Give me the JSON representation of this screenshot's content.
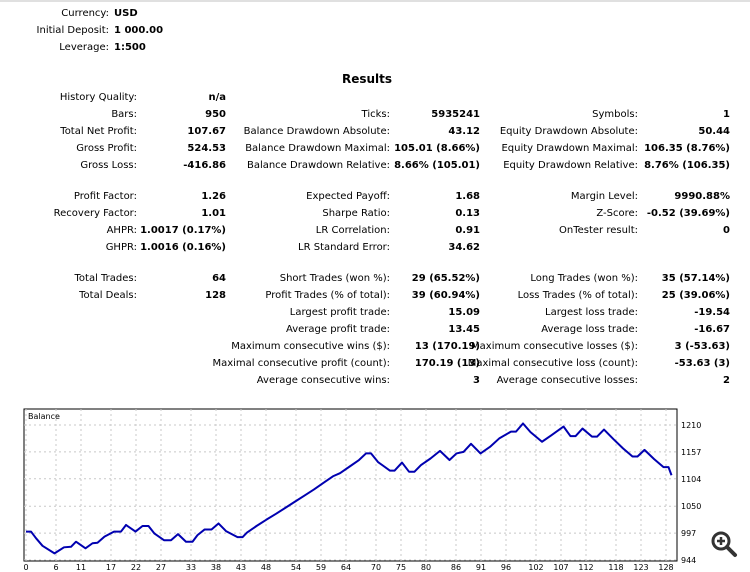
{
  "header": [
    {
      "label": "Currency:",
      "value": "USD"
    },
    {
      "label": "Initial Deposit:",
      "value": "1 000.00"
    },
    {
      "label": "Leverage:",
      "value": "1:500"
    }
  ],
  "results_title": "Results",
  "rows": [
    [
      [
        "History Quality:",
        "n/a"
      ],
      null,
      null
    ],
    [
      [
        "Bars:",
        "950"
      ],
      [
        "Ticks:",
        "5935241"
      ],
      [
        "Symbols:",
        "1"
      ]
    ],
    [
      [
        "Total Net Profit:",
        "107.67"
      ],
      [
        "Balance Drawdown Absolute:",
        "43.12"
      ],
      [
        "Equity Drawdown Absolute:",
        "50.44"
      ]
    ],
    [
      [
        "Gross Profit:",
        "524.53"
      ],
      [
        "Balance Drawdown Maximal:",
        "105.01 (8.66%)"
      ],
      [
        "Equity Drawdown Maximal:",
        "106.35 (8.76%)"
      ]
    ],
    [
      [
        "Gross Loss:",
        "-416.86"
      ],
      [
        "Balance Drawdown Relative:",
        "8.66% (105.01)"
      ],
      [
        "Equity Drawdown Relative:",
        "8.76% (106.35)"
      ]
    ],
    [
      [
        "Profit Factor:",
        "1.26"
      ],
      [
        "Expected Payoff:",
        "1.68"
      ],
      [
        "Margin Level:",
        "9990.88%"
      ]
    ],
    [
      [
        "Recovery Factor:",
        "1.01"
      ],
      [
        "Sharpe Ratio:",
        "0.13"
      ],
      [
        "Z-Score:",
        "-0.52 (39.69%)"
      ]
    ],
    [
      [
        "AHPR:",
        "1.0017 (0.17%)"
      ],
      [
        "LR Correlation:",
        "0.91"
      ],
      [
        "OnTester result:",
        "0"
      ]
    ],
    [
      [
        "GHPR:",
        "1.0016 (0.16%)"
      ],
      [
        "LR Standard Error:",
        "34.62"
      ],
      null
    ],
    [
      [
        "Total Trades:",
        "64"
      ],
      [
        "Short Trades (won %):",
        "29 (65.52%)"
      ],
      [
        "Long Trades (won %):",
        "35 (57.14%)"
      ]
    ],
    [
      [
        "Total Deals:",
        "128"
      ],
      [
        "Profit Trades (% of total):",
        "39 (60.94%)"
      ],
      [
        "Loss Trades (% of total):",
        "25 (39.06%)"
      ]
    ],
    [
      null,
      [
        "Largest profit trade:",
        "15.09"
      ],
      [
        "Largest loss trade:",
        "-19.54"
      ]
    ],
    [
      null,
      [
        "Average profit trade:",
        "13.45"
      ],
      [
        "Average loss trade:",
        "-16.67"
      ]
    ],
    [
      null,
      [
        "Maximum consecutive wins ($):",
        "13 (170.19)"
      ],
      [
        "Maximum consecutive losses ($):",
        "3 (-53.63)"
      ]
    ],
    [
      null,
      [
        "Maximal consecutive profit (count):",
        "170.19 (13)"
      ],
      [
        "Maximal consecutive loss (count):",
        "-53.63 (3)"
      ]
    ],
    [
      null,
      [
        "Average consecutive wins:",
        "3"
      ],
      [
        "Average consecutive losses:",
        "2"
      ]
    ]
  ],
  "chart_data": {
    "type": "line",
    "title": "Balance",
    "xlim": [
      0,
      129
    ],
    "ylim": [
      944,
      1224
    ],
    "x_ticks": [
      "0",
      "6",
      "11",
      "17",
      "22",
      "27",
      "33",
      "38",
      "43",
      "48",
      "54",
      "59",
      "64",
      "70",
      "75",
      "80",
      "86",
      "91",
      "96",
      "102",
      "107",
      "112",
      "118",
      "123",
      "128"
    ],
    "y_ticks": [
      "944",
      "997",
      "1050",
      "1104",
      "1157",
      "1210"
    ],
    "line_color": "#0000b0",
    "series": [
      {
        "name": "Balance",
        "points": [
          [
            0,
            1000
          ],
          [
            1,
            1000
          ],
          [
            2,
            987
          ],
          [
            3.3,
            972
          ],
          [
            5.7,
            957
          ],
          [
            7.6,
            969
          ],
          [
            9,
            970
          ],
          [
            10,
            980
          ],
          [
            11.9,
            967
          ],
          [
            13.3,
            977
          ],
          [
            14.3,
            978
          ],
          [
            15.7,
            990
          ],
          [
            17.6,
            1000
          ],
          [
            19,
            1000
          ],
          [
            20,
            1013
          ],
          [
            21.9,
            1000
          ],
          [
            23.3,
            1011
          ],
          [
            24.5,
            1011
          ],
          [
            25.7,
            996
          ],
          [
            27.6,
            983
          ],
          [
            29,
            983
          ],
          [
            30.4,
            995
          ],
          [
            32,
            980
          ],
          [
            33.3,
            980
          ],
          [
            34.3,
            993
          ],
          [
            35.7,
            1004
          ],
          [
            37.1,
            1004
          ],
          [
            38.5,
            1016
          ],
          [
            40,
            1001
          ],
          [
            42.3,
            989
          ],
          [
            43.3,
            989
          ],
          [
            44.2,
            998
          ],
          [
            46.1,
            1011
          ],
          [
            48,
            1023
          ],
          [
            50,
            1035
          ],
          [
            51.9,
            1047
          ],
          [
            53.8,
            1059
          ],
          [
            55.7,
            1071
          ],
          [
            57.6,
            1083
          ],
          [
            59.5,
            1096
          ],
          [
            61.4,
            1109
          ],
          [
            62.8,
            1115
          ],
          [
            64.7,
            1128
          ],
          [
            66.6,
            1141
          ],
          [
            68,
            1154
          ],
          [
            69,
            1154
          ],
          [
            70.4,
            1137
          ],
          [
            72.8,
            1120
          ],
          [
            73.7,
            1120
          ],
          [
            75.2,
            1136
          ],
          [
            76.6,
            1118
          ],
          [
            77.7,
            1118
          ],
          [
            79,
            1131
          ],
          [
            80.9,
            1144
          ],
          [
            82.8,
            1159
          ],
          [
            84.7,
            1141
          ],
          [
            86.1,
            1154
          ],
          [
            87.5,
            1157
          ],
          [
            89,
            1173
          ],
          [
            90.9,
            1154
          ],
          [
            92.8,
            1167
          ],
          [
            94.7,
            1184
          ],
          [
            97,
            1197
          ],
          [
            98,
            1197
          ],
          [
            99.4,
            1213
          ],
          [
            100.9,
            1196
          ],
          [
            103.2,
            1177
          ],
          [
            105.1,
            1190
          ],
          [
            107.5,
            1207
          ],
          [
            108.9,
            1188
          ],
          [
            109.9,
            1188
          ],
          [
            111.3,
            1203
          ],
          [
            113.2,
            1187
          ],
          [
            114.2,
            1187
          ],
          [
            115.6,
            1201
          ],
          [
            117.5,
            1182
          ],
          [
            119.4,
            1164
          ],
          [
            121.3,
            1148
          ],
          [
            122.3,
            1148
          ],
          [
            123.7,
            1161
          ],
          [
            125.6,
            1143
          ],
          [
            127.5,
            1127
          ],
          [
            128.5,
            1127
          ],
          [
            129.1,
            1111
          ]
        ]
      }
    ]
  }
}
